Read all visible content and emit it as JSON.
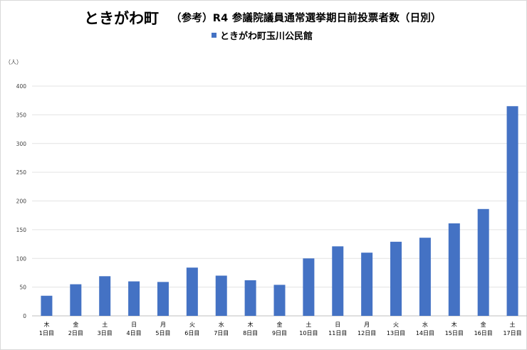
{
  "header": {
    "title": "ときがわ町",
    "subtitle": "（参考）R4 参議院議員通常選挙期日前投票者数（日別）"
  },
  "chart_data": {
    "type": "bar",
    "title": "ときがわ町　（参考）R4 参議院議員通常選挙期日前投票者数（日別）",
    "ylabel": "（人）",
    "xlabel": "",
    "ylim": [
      0,
      400
    ],
    "yticks": [
      0,
      50,
      100,
      150,
      200,
      250,
      300,
      350,
      400
    ],
    "grid": true,
    "legend_position": "top-center",
    "categories": [
      {
        "weekday": "木",
        "day": "1日目"
      },
      {
        "weekday": "金",
        "day": "2日目"
      },
      {
        "weekday": "土",
        "day": "3日目"
      },
      {
        "weekday": "日",
        "day": "4日目"
      },
      {
        "weekday": "月",
        "day": "5日目"
      },
      {
        "weekday": "火",
        "day": "6日目"
      },
      {
        "weekday": "水",
        "day": "7日目"
      },
      {
        "weekday": "木",
        "day": "8日目"
      },
      {
        "weekday": "金",
        "day": "9日目"
      },
      {
        "weekday": "土",
        "day": "10日目"
      },
      {
        "weekday": "日",
        "day": "11日目"
      },
      {
        "weekday": "月",
        "day": "12日目"
      },
      {
        "weekday": "火",
        "day": "13日目"
      },
      {
        "weekday": "水",
        "day": "14日目"
      },
      {
        "weekday": "木",
        "day": "15日目"
      },
      {
        "weekday": "金",
        "day": "16日目"
      },
      {
        "weekday": "土",
        "day": "17日目"
      }
    ],
    "series": [
      {
        "name": "ときがわ町玉川公民館",
        "color": "#4472c4",
        "values": [
          35,
          55,
          69,
          60,
          59,
          84,
          70,
          62,
          54,
          100,
          121,
          110,
          129,
          136,
          161,
          186,
          365
        ]
      }
    ]
  }
}
